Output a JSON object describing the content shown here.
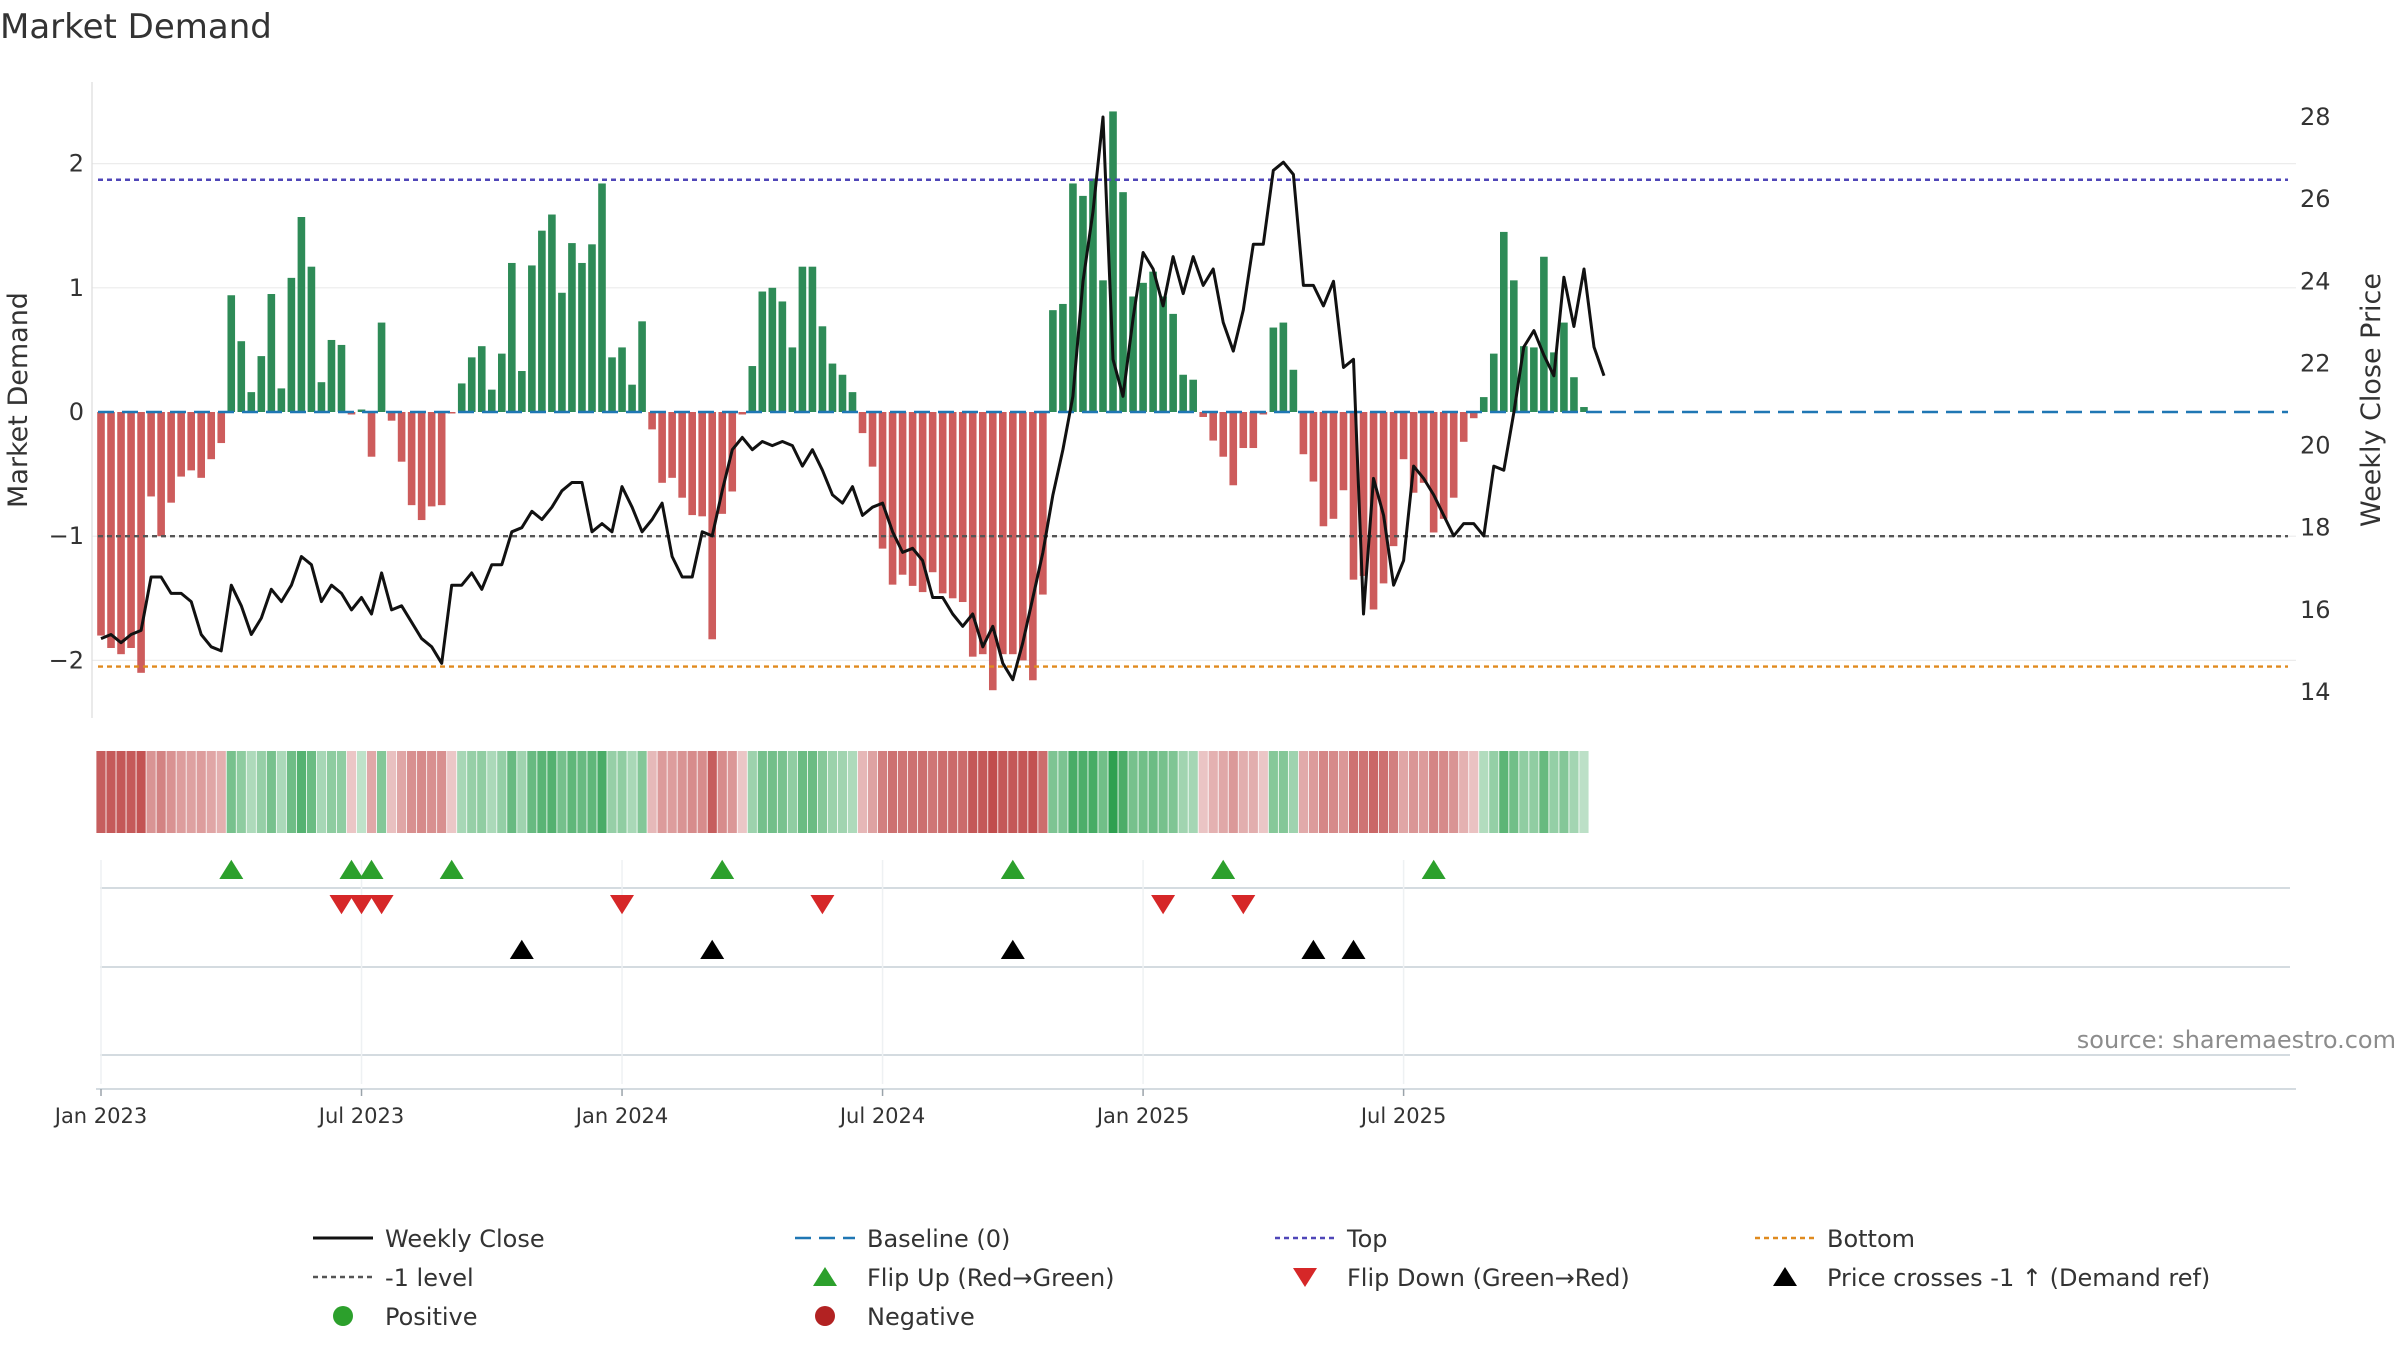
{
  "chart_data": {
    "type": "bar+line",
    "title": "Market Demand",
    "ylabel_left": "Market Demand",
    "ylabel_right": "Weekly Close Price",
    "ylim_left": [
      -2.5,
      2.65
    ],
    "ylim_right": [
      13.2,
      28.7
    ],
    "left_ticks": [
      {
        "value": 2,
        "label": "2"
      },
      {
        "value": 1,
        "label": "1"
      },
      {
        "value": 0,
        "label": "0"
      },
      {
        "value": -1,
        "label": "−1"
      },
      {
        "value": -2,
        "label": "−2"
      }
    ],
    "right_ticks": [
      {
        "value": 28,
        "label": "28"
      },
      {
        "value": 26,
        "label": "26"
      },
      {
        "value": 24,
        "label": "24"
      },
      {
        "value": 22,
        "label": "22"
      },
      {
        "value": 20,
        "label": "20"
      },
      {
        "value": 18,
        "label": "18"
      },
      {
        "value": 16,
        "label": "16"
      },
      {
        "value": 14,
        "label": "14"
      }
    ],
    "date_ticks": [
      {
        "week": 0,
        "label": "Jan 2023"
      },
      {
        "week": 26,
        "label": "Jul 2023"
      },
      {
        "week": 52,
        "label": "Jan 2024"
      },
      {
        "week": 78,
        "label": "Jul 2024"
      },
      {
        "week": 104,
        "label": "Jan 2025"
      },
      {
        "week": 130,
        "label": "Jul 2025"
      }
    ],
    "demand": [
      -1.8,
      -1.9,
      -1.95,
      -1.9,
      -2.1,
      -0.68,
      -1.0,
      -0.73,
      -0.52,
      -0.47,
      -0.53,
      -0.38,
      -0.25,
      0.94,
      0.57,
      0.16,
      0.45,
      0.95,
      0.19,
      1.08,
      1.57,
      1.17,
      0.24,
      0.58,
      0.54,
      -0.02,
      0.02,
      -0.36,
      0.72,
      -0.07,
      -0.4,
      -0.75,
      -0.87,
      -0.76,
      -0.75,
      -0.01,
      0.23,
      0.44,
      0.53,
      0.18,
      0.47,
      1.2,
      0.33,
      1.18,
      1.46,
      1.59,
      0.96,
      1.36,
      1.2,
      1.35,
      1.84,
      0.44,
      0.52,
      0.22,
      0.73,
      -0.14,
      -0.57,
      -0.53,
      -0.69,
      -0.83,
      -0.84,
      -1.83,
      -0.82,
      -0.64,
      -0.02,
      0.37,
      0.97,
      1.0,
      0.89,
      0.52,
      1.17,
      1.17,
      0.69,
      0.39,
      0.3,
      0.16,
      -0.17,
      -0.44,
      -1.1,
      -1.39,
      -1.31,
      -1.4,
      -1.45,
      -1.29,
      -1.46,
      -1.5,
      -1.53,
      -1.97,
      -1.95,
      -2.24,
      -1.95,
      -1.95,
      -2.0,
      -2.16,
      -1.47,
      0.82,
      0.87,
      1.84,
      1.74,
      1.88,
      1.06,
      2.42,
      1.77,
      0.93,
      1.04,
      1.13,
      0.93,
      0.79,
      0.3,
      0.26,
      -0.04,
      -0.23,
      -0.36,
      -0.59,
      -0.29,
      -0.29,
      -0.02,
      0.68,
      0.72,
      0.34,
      -0.34,
      -0.56,
      -0.92,
      -0.86,
      -0.63,
      -1.35,
      -1.32,
      -1.59,
      -1.38,
      -1.08,
      -0.38,
      -0.65,
      -0.57,
      -0.97,
      -0.86,
      -0.69,
      -0.24,
      -0.05,
      0.12,
      0.47,
      1.45,
      1.06,
      0.53,
      0.52,
      1.25,
      0.48,
      0.72,
      0.28,
      0.04
    ],
    "price": [
      15.3,
      15.4,
      15.2,
      15.4,
      15.5,
      16.8,
      16.8,
      16.4,
      16.4,
      16.2,
      15.4,
      15.1,
      15.0,
      16.6,
      16.1,
      15.4,
      15.8,
      16.5,
      16.2,
      16.6,
      17.3,
      17.1,
      16.2,
      16.6,
      16.4,
      16.0,
      16.3,
      15.9,
      16.9,
      16.0,
      16.1,
      15.7,
      15.3,
      15.1,
      14.7,
      16.6,
      16.6,
      16.9,
      16.5,
      17.1,
      17.1,
      17.9,
      18.0,
      18.4,
      18.2,
      18.5,
      18.9,
      19.1,
      19.1,
      17.9,
      18.1,
      17.9,
      19.0,
      18.5,
      17.9,
      18.2,
      18.6,
      17.3,
      16.8,
      16.8,
      17.9,
      17.8,
      18.9,
      19.9,
      20.2,
      19.9,
      20.1,
      20.0,
      20.1,
      20.0,
      19.5,
      19.9,
      19.4,
      18.8,
      18.6,
      19.0,
      18.3,
      18.5,
      18.6,
      17.9,
      17.4,
      17.5,
      17.2,
      16.3,
      16.3,
      15.9,
      15.6,
      15.9,
      15.1,
      15.6,
      14.7,
      14.3,
      15.2,
      16.3,
      17.4,
      18.8,
      19.9,
      21.2,
      24.0,
      25.7,
      28.0,
      22.1,
      21.2,
      23.1,
      24.7,
      24.3,
      23.4,
      24.6,
      23.7,
      24.6,
      23.9,
      24.3,
      23.0,
      22.3,
      23.3,
      24.9,
      24.9,
      26.7,
      26.9,
      26.6,
      23.9,
      23.9,
      23.4,
      24.0,
      21.9,
      22.1,
      15.9,
      19.2,
      18.3,
      16.6,
      17.2,
      19.5,
      19.2,
      18.8,
      18.3,
      17.8,
      18.1,
      18.1,
      17.8,
      19.5,
      19.4,
      20.8,
      22.4,
      22.8,
      22.2,
      21.7,
      24.1,
      22.9,
      24.3,
      22.4,
      21.7
    ],
    "levels": [
      {
        "name": "Top",
        "value": 1.87,
        "color": "#4f46b8"
      },
      {
        "name": "-1 level",
        "value": -1.0,
        "color": "#555555"
      },
      {
        "name": "Bottom",
        "value": -2.05,
        "color": "#e08a1e"
      }
    ],
    "flip_up_weeks": [
      13,
      25,
      27,
      35,
      62,
      91,
      112,
      133
    ],
    "flip_down_weeks": [
      24,
      26,
      28,
      52,
      72,
      106,
      114
    ],
    "price_cross_weeks": [
      42,
      61,
      91,
      121,
      125
    ],
    "colors": {
      "positive_bar": "#2e8b57",
      "negative_bar": "#cd5c5c",
      "price_line": "#111111",
      "baseline": "#1f77b4",
      "flip_up": "#2ca02c",
      "flip_down": "#d62728",
      "cross_marker": "#000000",
      "positive_dot": "#2ca02c",
      "negative_dot": "#b22222"
    },
    "source": "source: sharemaestro.com",
    "legend": [
      {
        "key": "close",
        "label": "Weekly Close"
      },
      {
        "key": "baseline",
        "label": "Baseline (0)"
      },
      {
        "key": "top",
        "label": "Top"
      },
      {
        "key": "bottom",
        "label": "Bottom"
      },
      {
        "key": "minus1",
        "label": "-1 level"
      },
      {
        "key": "flipup",
        "label": "Flip Up (Red→Green)"
      },
      {
        "key": "flipdown",
        "label": "Flip Down (Green→Red)"
      },
      {
        "key": "cross",
        "label": "Price crosses -1 ↑ (Demand ref)"
      },
      {
        "key": "positive",
        "label": "Positive"
      },
      {
        "key": "negative",
        "label": "Negative"
      }
    ]
  }
}
